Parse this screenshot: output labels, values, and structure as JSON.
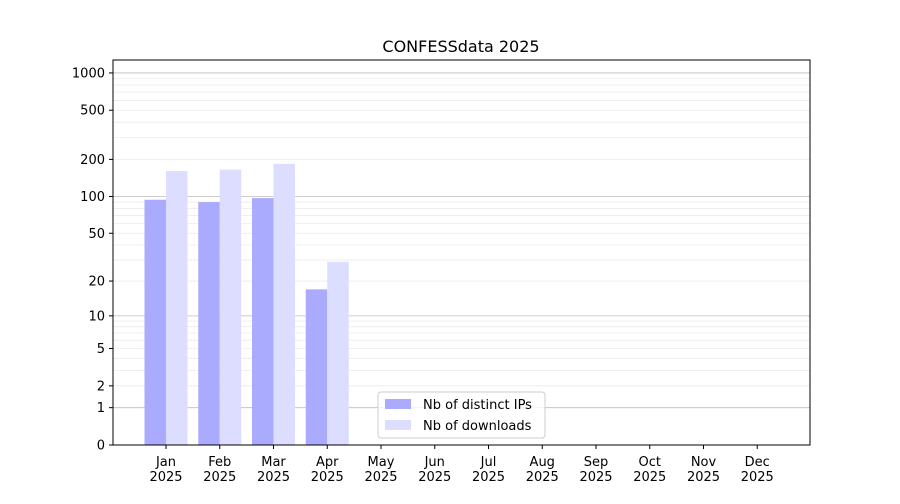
{
  "chart_data": {
    "type": "bar",
    "title": "CONFESSdata 2025",
    "xlabel": "",
    "ylabel": "",
    "yscale": "log(1+y)",
    "ylim": [
      0,
      1270
    ],
    "yticks": [
      0,
      1,
      2,
      5,
      10,
      20,
      50,
      100,
      200,
      500,
      1000
    ],
    "grid": true,
    "legend_position": "bottom-center",
    "categories": [
      [
        "Jan",
        "2025"
      ],
      [
        "Feb",
        "2025"
      ],
      [
        "Mar",
        "2025"
      ],
      [
        "Apr",
        "2025"
      ],
      [
        "May",
        "2025"
      ],
      [
        "Jun",
        "2025"
      ],
      [
        "Jul",
        "2025"
      ],
      [
        "Aug",
        "2025"
      ],
      [
        "Sep",
        "2025"
      ],
      [
        "Oct",
        "2025"
      ],
      [
        "Nov",
        "2025"
      ],
      [
        "Dec",
        "2025"
      ]
    ],
    "series": [
      {
        "name": "Nb of distinct IPs",
        "color": "#aaaaff",
        "values": [
          94,
          90,
          97,
          17,
          null,
          null,
          null,
          null,
          null,
          null,
          null,
          null
        ]
      },
      {
        "name": "Nb of downloads",
        "color": "#ddddff",
        "values": [
          161,
          165,
          184,
          29,
          null,
          null,
          null,
          null,
          null,
          null,
          null,
          null
        ]
      }
    ]
  }
}
